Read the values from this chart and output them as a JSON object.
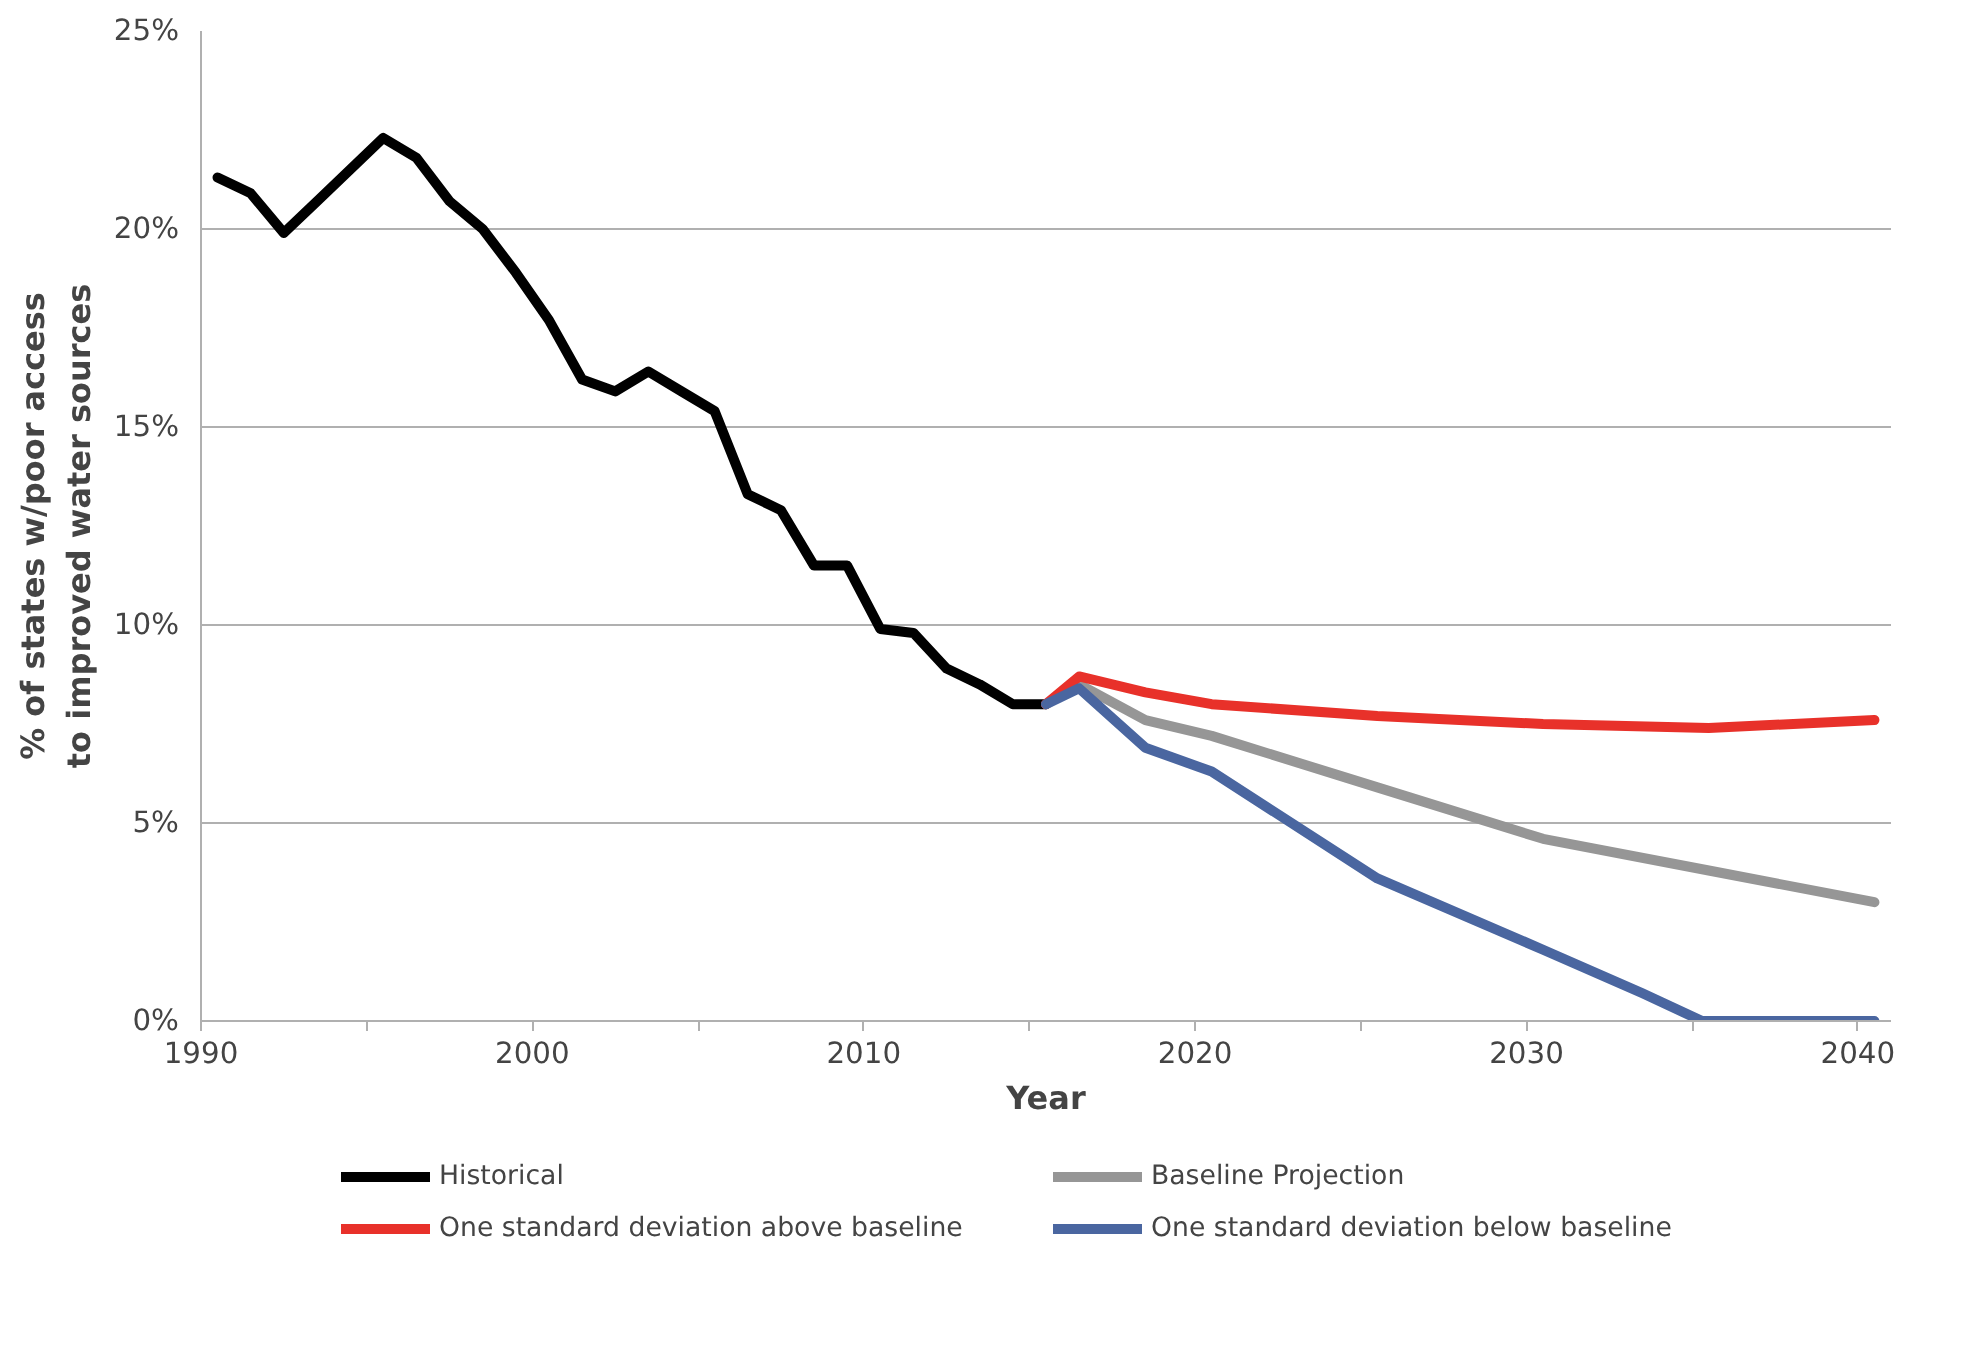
{
  "chart_data": {
    "type": "line",
    "xlabel": "Year",
    "ylabel": "% of states w/poor access to improved water sources",
    "xlim": [
      1990,
      2041
    ],
    "ylim": [
      0,
      25
    ],
    "xticks": [
      1990,
      {
        "value": 1995,
        "label": null
      },
      2000,
      {
        "value": 2005,
        "label": null
      },
      2010,
      {
        "value": 2015,
        "label": null
      },
      2020,
      {
        "value": 2025,
        "label": null
      },
      2030,
      {
        "value": 2035,
        "label": null
      },
      2040
    ],
    "yticks": [
      {
        "value": 0,
        "label": "0%"
      },
      {
        "value": 5,
        "label": "5%"
      },
      {
        "value": 10,
        "label": "10%"
      },
      {
        "value": 15,
        "label": "15%"
      },
      {
        "value": 20,
        "label": "20%"
      },
      {
        "value": 25,
        "label": "25%"
      }
    ],
    "grid": "y",
    "legend": "bottom",
    "marker": "none",
    "line_style": "solid",
    "series": [
      {
        "name": "Historical",
        "color": "#000000",
        "x": [
          1990.5,
          1991.5,
          1992.5,
          1993.5,
          1994.5,
          1995.5,
          1996.5,
          1997.5,
          1998.5,
          1999.5,
          2000.5,
          2001.5,
          2002.5,
          2003.5,
          2004.5,
          2005.5,
          2006.5,
          2007.5,
          2008.5,
          2009.5,
          2010.5,
          2011.5,
          2012.5,
          2013.5,
          2014.5,
          2015.5
        ],
        "values": [
          21.3,
          20.9,
          19.9,
          20.7,
          21.5,
          22.3,
          21.8,
          20.7,
          20.0,
          18.9,
          17.7,
          16.2,
          15.9,
          16.4,
          15.9,
          15.4,
          13.3,
          12.9,
          11.5,
          11.5,
          9.9,
          9.8,
          8.9,
          8.5,
          8.0,
          8.0
        ]
      },
      {
        "name": "Baseline Projection",
        "color": "#969696",
        "x": [
          2015.5,
          2016.5,
          2018.5,
          2020.5,
          2025.5,
          2030.5,
          2035.5,
          2040.5
        ],
        "values": [
          8.0,
          8.5,
          7.6,
          7.2,
          5.9,
          4.6,
          3.8,
          3.0
        ]
      },
      {
        "name": "One standard deviation above baseline",
        "color": "#e8312a",
        "x": [
          2015.5,
          2016.5,
          2018.5,
          2020.5,
          2025.5,
          2030.5,
          2035.5,
          2040.5
        ],
        "values": [
          8.0,
          8.7,
          8.3,
          8.0,
          7.7,
          7.5,
          7.4,
          7.6
        ]
      },
      {
        "name": "One standard deviation below baseline",
        "color": "#4a66a0",
        "x": [
          2015.5,
          2016.5,
          2018.5,
          2020.5,
          2025.5,
          2030.5,
          2033.5,
          2035.3,
          2040.5
        ],
        "values": [
          8.0,
          8.4,
          6.9,
          6.3,
          3.6,
          1.8,
          0.7,
          0,
          0
        ]
      }
    ]
  }
}
